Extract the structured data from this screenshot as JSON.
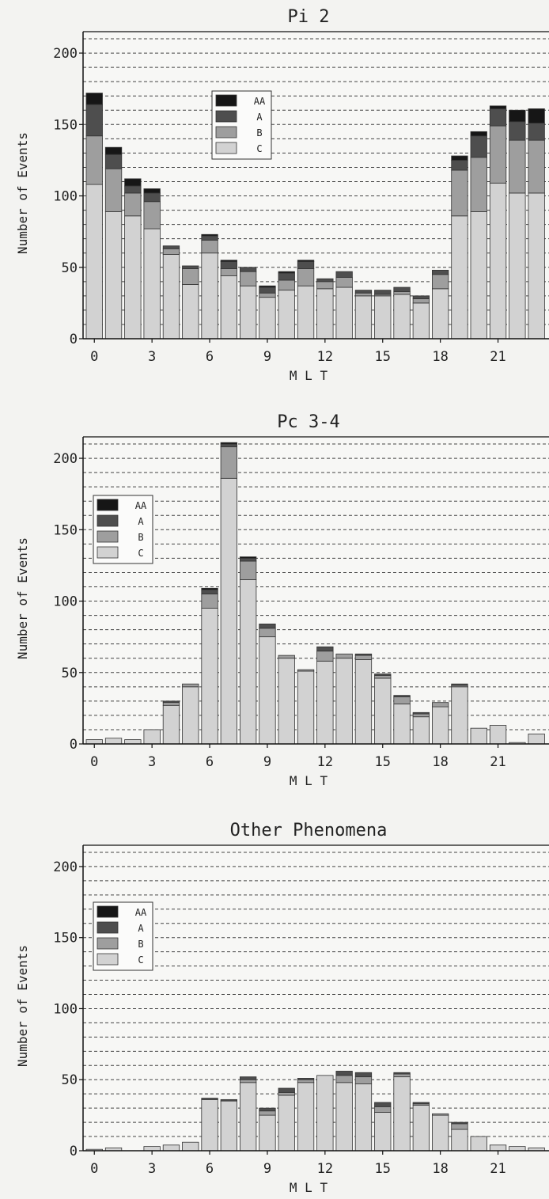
{
  "chart_data": [
    {
      "type": "bar",
      "stacked": true,
      "title": "Pi 2",
      "xlabel": "M L T",
      "ylabel": "Number of Events",
      "ylim": [
        0,
        215
      ],
      "yticks": [
        0,
        50,
        100,
        150,
        200
      ],
      "xticks": [
        0,
        3,
        6,
        9,
        12,
        15,
        18,
        21
      ],
      "grid": "horizontal dashed",
      "legend_position": "upper-left",
      "categories": [
        0,
        1,
        2,
        3,
        4,
        5,
        6,
        7,
        8,
        9,
        10,
        11,
        12,
        13,
        14,
        15,
        16,
        17,
        18,
        19,
        20,
        21,
        22,
        23
      ],
      "series": [
        {
          "name": "C",
          "color": "#d2d2d2",
          "values": [
            108,
            89,
            86,
            77,
            59,
            38,
            60,
            44,
            37,
            29,
            34,
            37,
            35,
            36,
            30,
            30,
            31,
            25,
            35,
            86,
            89,
            109,
            102,
            102
          ]
        },
        {
          "name": "B",
          "color": "#9e9e9e",
          "values": [
            34,
            30,
            16,
            19,
            4,
            11,
            9,
            5,
            10,
            3,
            7,
            12,
            5,
            7,
            2,
            1,
            2,
            3,
            10,
            32,
            38,
            40,
            37,
            37
          ]
        },
        {
          "name": "A",
          "color": "#4e4e4e",
          "values": [
            22,
            10,
            5,
            6,
            2,
            2,
            3,
            5,
            3,
            4,
            5,
            5,
            2,
            4,
            2,
            3,
            3,
            2,
            3,
            7,
            15,
            12,
            13,
            12
          ]
        },
        {
          "name": "AA",
          "color": "#161616",
          "values": [
            8,
            5,
            5,
            3,
            0,
            0,
            1,
            1,
            0,
            1,
            1,
            1,
            0,
            0,
            0,
            0,
            0,
            0,
            0,
            3,
            3,
            2,
            8,
            10
          ]
        }
      ]
    },
    {
      "type": "bar",
      "stacked": true,
      "title": "Pc 3-4",
      "xlabel": "M L T",
      "ylabel": "Number of Events",
      "ylim": [
        0,
        215
      ],
      "yticks": [
        0,
        50,
        100,
        150,
        200
      ],
      "xticks": [
        0,
        3,
        6,
        9,
        12,
        15,
        18,
        21
      ],
      "grid": "horizontal dashed",
      "legend_position": "upper-left",
      "categories": [
        0,
        1,
        2,
        3,
        4,
        5,
        6,
        7,
        8,
        9,
        10,
        11,
        12,
        13,
        14,
        15,
        16,
        17,
        18,
        19,
        20,
        21,
        22,
        23
      ],
      "series": [
        {
          "name": "C",
          "color": "#d2d2d2",
          "values": [
            3,
            4,
            3,
            10,
            27,
            40,
            95,
            186,
            115,
            75,
            60,
            51,
            58,
            60,
            59,
            46,
            28,
            19,
            26,
            40,
            11,
            13,
            1,
            7
          ]
        },
        {
          "name": "B",
          "color": "#9e9e9e",
          "values": [
            0,
            0,
            0,
            0,
            2,
            2,
            10,
            22,
            13,
            6,
            2,
            1,
            7,
            3,
            3,
            2,
            5,
            2,
            3,
            1,
            0,
            0,
            0,
            0
          ]
        },
        {
          "name": "A",
          "color": "#4e4e4e",
          "values": [
            0,
            0,
            0,
            0,
            1,
            0,
            3,
            2,
            2,
            3,
            0,
            0,
            3,
            0,
            1,
            1,
            1,
            1,
            0,
            1,
            0,
            0,
            0,
            0
          ]
        },
        {
          "name": "AA",
          "color": "#161616",
          "values": [
            0,
            0,
            0,
            0,
            0,
            0,
            1,
            1,
            1,
            0,
            0,
            0,
            0,
            0,
            0,
            0,
            0,
            0,
            0,
            0,
            0,
            0,
            0,
            0
          ]
        }
      ]
    },
    {
      "type": "bar",
      "stacked": true,
      "title": "Other Phenomena",
      "xlabel": "M L T",
      "ylabel": "Number of Events",
      "ylim": [
        0,
        215
      ],
      "yticks": [
        0,
        50,
        100,
        150,
        200
      ],
      "xticks": [
        0,
        3,
        6,
        9,
        12,
        15,
        18,
        21
      ],
      "grid": "horizontal dashed",
      "legend_position": "upper-left",
      "categories": [
        0,
        1,
        2,
        3,
        4,
        5,
        6,
        7,
        8,
        9,
        10,
        11,
        12,
        13,
        14,
        15,
        16,
        17,
        18,
        19,
        20,
        21,
        22,
        23
      ],
      "series": [
        {
          "name": "C",
          "color": "#d2d2d2",
          "values": [
            1,
            2,
            0,
            3,
            4,
            6,
            36,
            35,
            48,
            25,
            39,
            48,
            53,
            48,
            47,
            27,
            52,
            32,
            25,
            15,
            10,
            4,
            3,
            2
          ]
        },
        {
          "name": "B",
          "color": "#9e9e9e",
          "values": [
            0,
            0,
            0,
            0,
            0,
            0,
            0,
            0,
            2,
            3,
            2,
            2,
            0,
            5,
            5,
            4,
            2,
            1,
            1,
            4,
            0,
            0,
            0,
            0
          ]
        },
        {
          "name": "A",
          "color": "#4e4e4e",
          "values": [
            0,
            0,
            0,
            0,
            0,
            0,
            1,
            1,
            2,
            2,
            3,
            1,
            0,
            3,
            3,
            3,
            1,
            1,
            0,
            1,
            0,
            0,
            0,
            0
          ]
        },
        {
          "name": "AA",
          "color": "#161616",
          "values": [
            0,
            0,
            0,
            0,
            0,
            0,
            0,
            0,
            0,
            0,
            0,
            0,
            0,
            0,
            0,
            0,
            0,
            0,
            0,
            0,
            0,
            0,
            0,
            0
          ]
        }
      ]
    }
  ]
}
